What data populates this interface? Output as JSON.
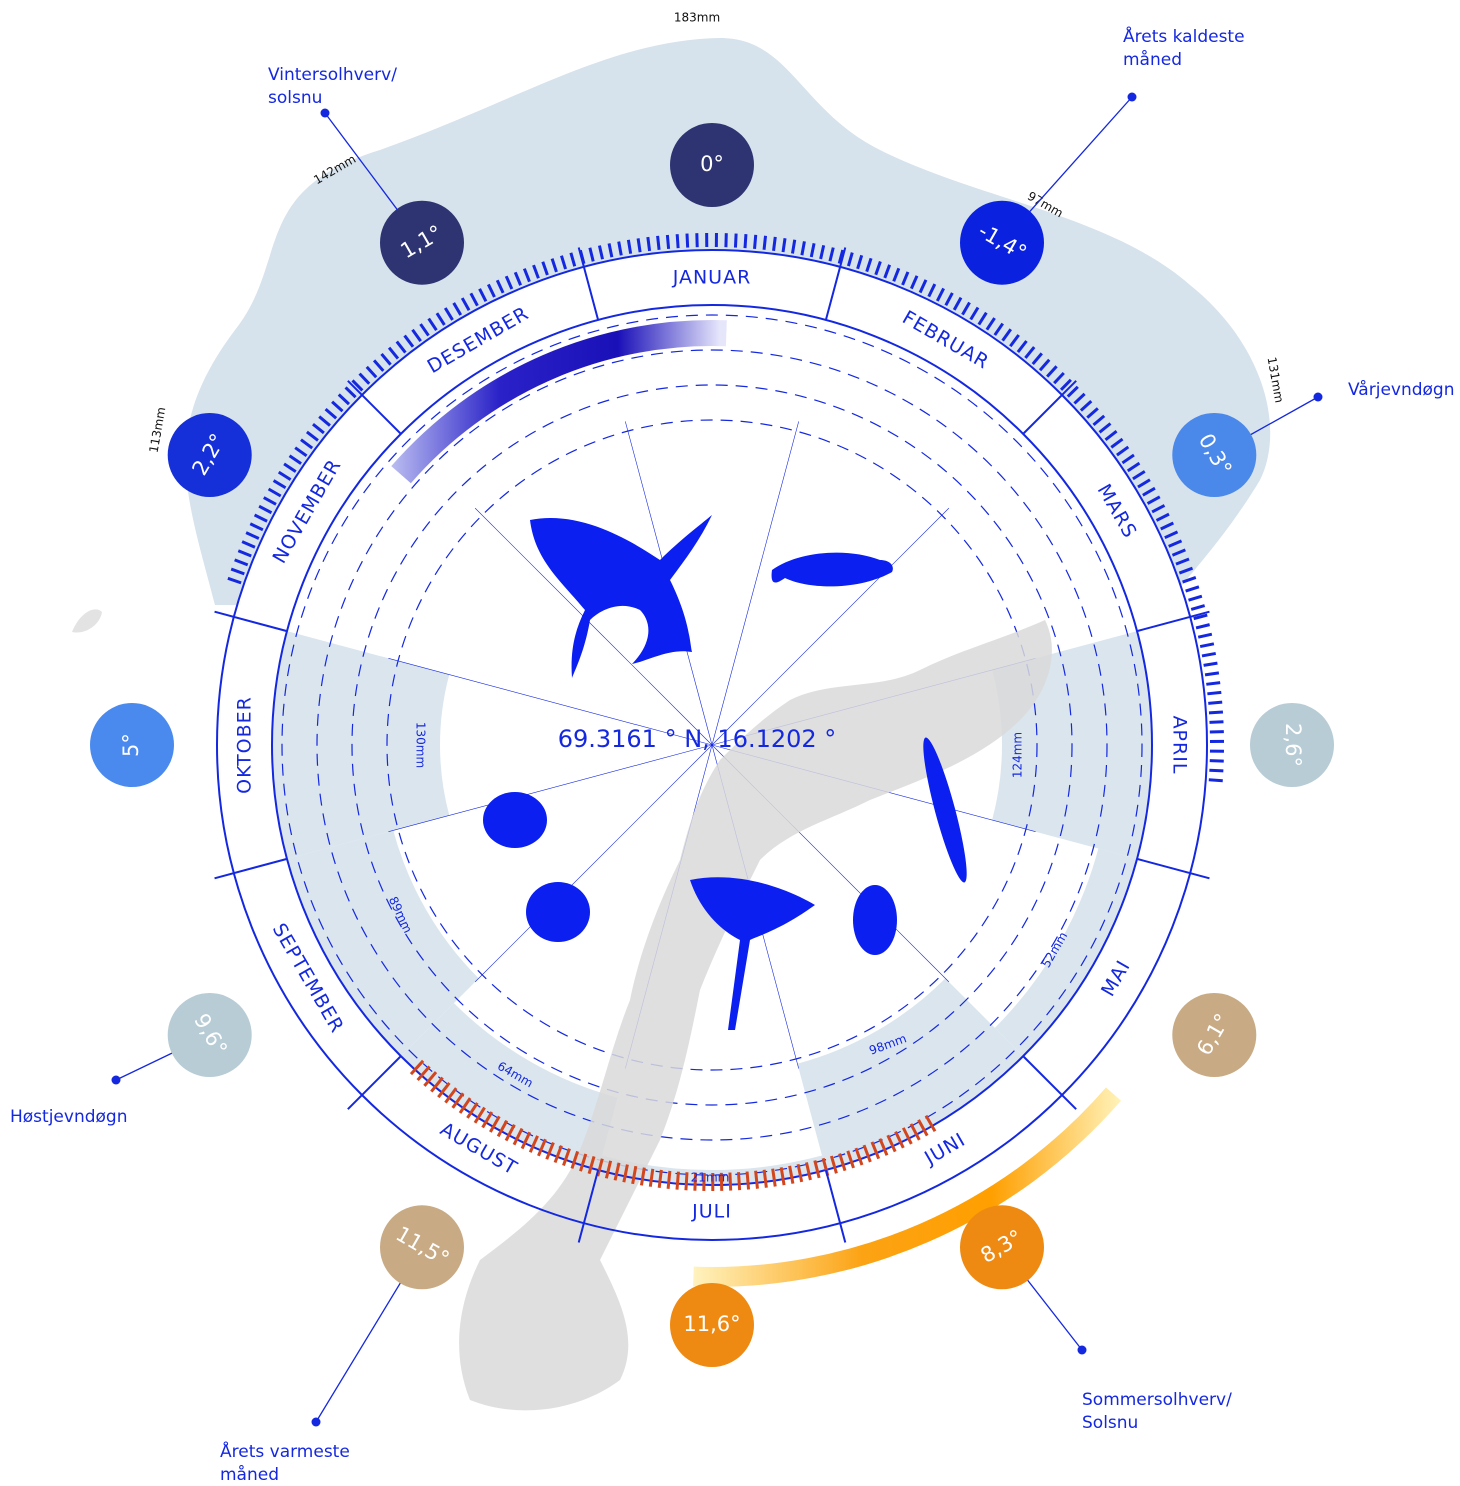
{
  "center_label": "69.3161 ° N, 16.1202 °",
  "months": [
    {
      "name": "JANUAR",
      "temperature": "0°",
      "precipitation": "183mm"
    },
    {
      "name": "FEBRUAR",
      "temperature": "-1,4°",
      "precipitation": "97mm"
    },
    {
      "name": "MARS",
      "temperature": "0,3°",
      "precipitation": "131mm"
    },
    {
      "name": "APRIL",
      "temperature": "2,6°",
      "precipitation": "124mm"
    },
    {
      "name": "MAI",
      "temperature": "6,1°",
      "precipitation": "52mm"
    },
    {
      "name": "JUNI",
      "temperature": "8,3°",
      "precipitation": "98mm"
    },
    {
      "name": "JULI",
      "temperature": "11,6°",
      "precipitation": "21mm"
    },
    {
      "name": "AUGUST",
      "temperature": "11,5°",
      "precipitation": "64mm"
    },
    {
      "name": "SEPTEMBER",
      "temperature": "9,6°",
      "precipitation": "89mm"
    },
    {
      "name": "OKTOBER",
      "temperature": "5°",
      "precipitation": "130mm"
    },
    {
      "name": "NOVEMBER",
      "temperature": "2,2°",
      "precipitation": "113mm"
    },
    {
      "name": "DESEMBER",
      "temperature": "1,1°",
      "precipitation": "142mm"
    }
  ],
  "annotations": [
    {
      "lines": [
        "Vintersolhverv/",
        "solsnu"
      ]
    },
    {
      "lines": [
        "Årets kaldeste",
        "måned"
      ]
    },
    {
      "lines": [
        "Vårjevndøgn"
      ]
    },
    {
      "lines": [
        "Høstjevndøgn"
      ]
    },
    {
      "lines": [
        "Årets varmeste",
        "måned"
      ]
    },
    {
      "lines": [
        "Sommersolhverv/",
        "Solsnu"
      ]
    }
  ]
}
